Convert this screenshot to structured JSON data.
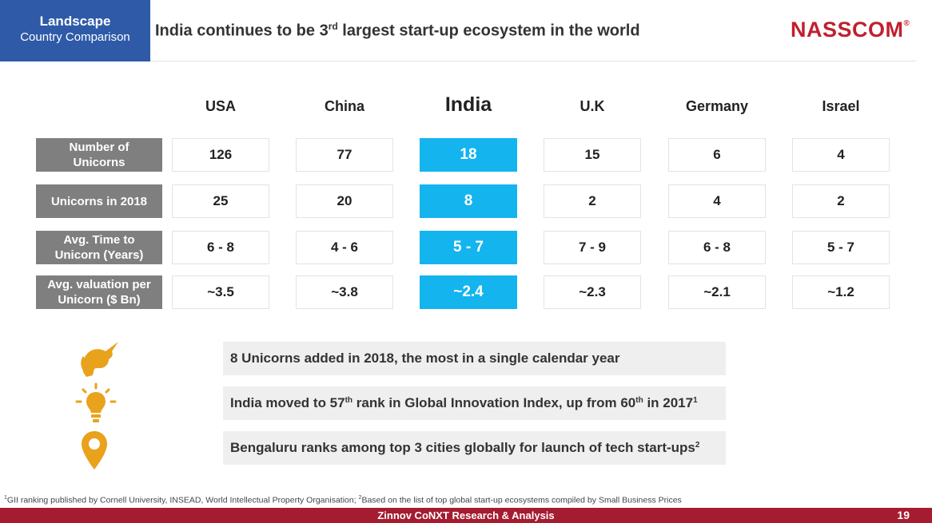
{
  "tag": {
    "line1": "Landscape",
    "line2": "Country Comparison"
  },
  "headline": {
    "pre": "India continues to be 3",
    "sup": "rd",
    "post": " largest start-up ecosystem in the world"
  },
  "brand": {
    "name": "NASSCOM",
    "mark": "®"
  },
  "table": {
    "columns": [
      "USA",
      "China",
      "India",
      "U.K",
      "Germany",
      "Israel"
    ],
    "rows": [
      {
        "label_line1": "Number of",
        "label_line2": "Unicorns",
        "values": [
          "126",
          "77",
          "18",
          "15",
          "6",
          "4"
        ]
      },
      {
        "label_line1": "Unicorns in 2018",
        "label_line2": "",
        "values": [
          "25",
          "20",
          "8",
          "2",
          "4",
          "2"
        ]
      },
      {
        "label_line1": "Avg. Time to",
        "label_line2": "Unicorn (Years)",
        "values": [
          "6 - 8",
          "4 - 6",
          "5 - 7",
          "7 - 9",
          "6 - 8",
          "5 - 7"
        ]
      },
      {
        "label_line1": "Avg. valuation per",
        "label_line2": "Unicorn ($ Bn)",
        "values": [
          "~3.5",
          "~3.8",
          "~2.4",
          "~2.3",
          "~2.1",
          "~1.2"
        ]
      }
    ]
  },
  "facts": [
    {
      "icon": "unicorn-icon",
      "pre": "8 Unicorns added in 2018, the most in a single calendar year"
    },
    {
      "icon": "lightbulb-icon",
      "pre": "India moved to 57",
      "sup1": "th",
      "mid": " rank in Global Innovation Index, up from 60",
      "sup2": "th",
      "post": " in 2017",
      "sup3": "1"
    },
    {
      "icon": "location-pin-icon",
      "pre": "Bengaluru ranks among top 3 cities globally for launch of tech start-ups",
      "sup1": "2"
    }
  ],
  "footnote": {
    "sup1": "1",
    "text1": "GII ranking published by Cornell University, INSEAD, World Intellectual Property Organisation; ",
    "sup2": "2",
    "text2": "Based on the list of top global start-up ecosystems compiled by Small Business Prices"
  },
  "footer": {
    "source": "Zinnov CoNXT Research & Analysis",
    "page": "19"
  },
  "colors": {
    "tag_bg": "#2e5aa8",
    "highlight": "#14b4ee",
    "label_bg": "#7f7f7f",
    "footer_bg": "#a51c30",
    "brand": "#c0202e",
    "icon_gold": "#e8a21c"
  }
}
